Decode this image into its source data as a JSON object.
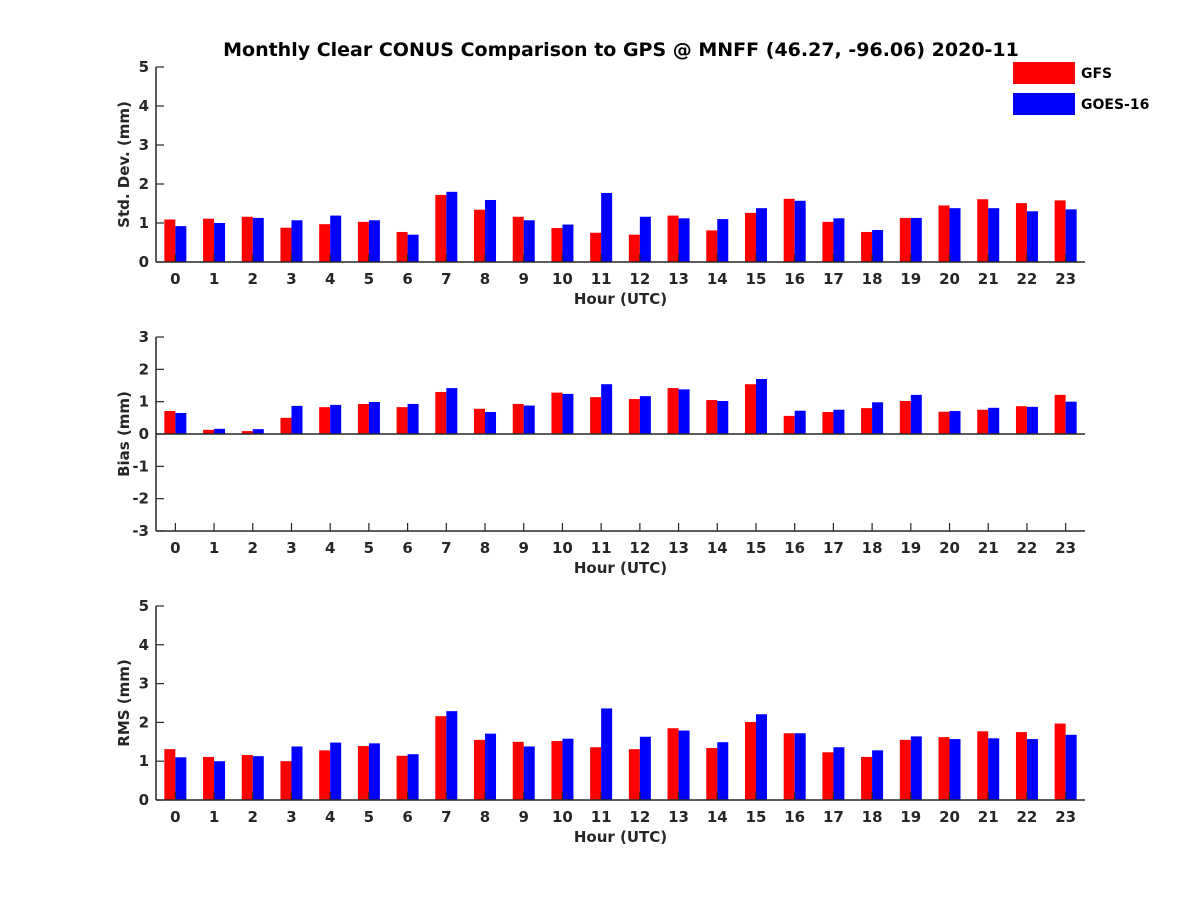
{
  "title": "Monthly Clear CONUS Comparison to GPS @ MNFF (46.27, -96.06) 2020-11",
  "legend": {
    "position": "top-right",
    "items": [
      {
        "label": "GFS",
        "color": "#ff0000"
      },
      {
        "label": "GOES-16",
        "color": "#0000ff"
      }
    ]
  },
  "chart_data": [
    {
      "type": "bar",
      "xlabel": "Hour (UTC)",
      "ylabel": "Std. Dev. (mm)",
      "ylim": [
        0,
        5
      ],
      "yticks": [
        "0",
        "1",
        "2",
        "3",
        "4",
        "5"
      ],
      "categories": [
        "0",
        "1",
        "2",
        "3",
        "4",
        "5",
        "6",
        "7",
        "8",
        "9",
        "10",
        "11",
        "12",
        "13",
        "14",
        "15",
        "16",
        "17",
        "18",
        "19",
        "20",
        "21",
        "22",
        "23"
      ],
      "series": [
        {
          "name": "GFS",
          "color": "#ff0000",
          "values": [
            1.09,
            1.11,
            1.16,
            0.88,
            0.97,
            1.03,
            0.77,
            1.72,
            1.34,
            1.16,
            0.87,
            0.75,
            0.7,
            1.19,
            0.81,
            1.26,
            1.62,
            1.03,
            0.77,
            1.13,
            1.45,
            1.61,
            1.51,
            1.58
          ]
        },
        {
          "name": "GOES-16",
          "color": "#0000ff",
          "values": [
            0.92,
            1.0,
            1.13,
            1.07,
            1.19,
            1.07,
            0.7,
            1.8,
            1.59,
            1.07,
            0.96,
            1.77,
            1.16,
            1.12,
            1.1,
            1.38,
            1.57,
            1.12,
            0.82,
            1.13,
            1.38,
            1.38,
            1.3,
            1.35
          ]
        }
      ]
    },
    {
      "type": "bar",
      "xlabel": "Hour (UTC)",
      "ylabel": "Bias (mm)",
      "ylim": [
        -3,
        3
      ],
      "yticks": [
        "-3",
        "-2",
        "-1",
        "0",
        "1",
        "2",
        "3"
      ],
      "categories": [
        "0",
        "1",
        "2",
        "3",
        "4",
        "5",
        "6",
        "7",
        "8",
        "9",
        "10",
        "11",
        "12",
        "13",
        "14",
        "15",
        "16",
        "17",
        "18",
        "19",
        "20",
        "21",
        "22",
        "23"
      ],
      "series": [
        {
          "name": "GFS",
          "color": "#ff0000",
          "values": [
            0.71,
            0.13,
            0.09,
            0.5,
            0.83,
            0.93,
            0.83,
            1.3,
            0.78,
            0.93,
            1.28,
            1.14,
            1.08,
            1.42,
            1.05,
            1.54,
            0.56,
            0.68,
            0.8,
            1.02,
            0.69,
            0.75,
            0.86,
            1.21
          ]
        },
        {
          "name": "GOES-16",
          "color": "#0000ff",
          "values": [
            0.65,
            0.16,
            0.15,
            0.87,
            0.9,
            0.99,
            0.93,
            1.42,
            0.68,
            0.88,
            1.24,
            1.54,
            1.17,
            1.38,
            1.02,
            1.7,
            0.72,
            0.75,
            0.98,
            1.21,
            0.71,
            0.81,
            0.84,
            1.0
          ]
        }
      ]
    },
    {
      "type": "bar",
      "xlabel": "Hour (UTC)",
      "ylabel": "RMS (mm)",
      "ylim": [
        0,
        5
      ],
      "yticks": [
        "0",
        "1",
        "2",
        "3",
        "4",
        "5"
      ],
      "categories": [
        "0",
        "1",
        "2",
        "3",
        "4",
        "5",
        "6",
        "7",
        "8",
        "9",
        "10",
        "11",
        "12",
        "13",
        "14",
        "15",
        "16",
        "17",
        "18",
        "19",
        "20",
        "21",
        "22",
        "23"
      ],
      "series": [
        {
          "name": "GFS",
          "color": "#ff0000",
          "values": [
            1.31,
            1.11,
            1.16,
            1.0,
            1.28,
            1.39,
            1.14,
            2.16,
            1.55,
            1.5,
            1.52,
            1.36,
            1.31,
            1.85,
            1.34,
            2.01,
            1.72,
            1.23,
            1.11,
            1.55,
            1.62,
            1.77,
            1.75,
            1.97
          ]
        },
        {
          "name": "GOES-16",
          "color": "#0000ff",
          "values": [
            1.1,
            1.0,
            1.13,
            1.38,
            1.48,
            1.46,
            1.18,
            2.29,
            1.71,
            1.38,
            1.58,
            2.36,
            1.63,
            1.79,
            1.49,
            2.21,
            1.72,
            1.36,
            1.28,
            1.64,
            1.57,
            1.59,
            1.57,
            1.68
          ]
        }
      ]
    }
  ]
}
